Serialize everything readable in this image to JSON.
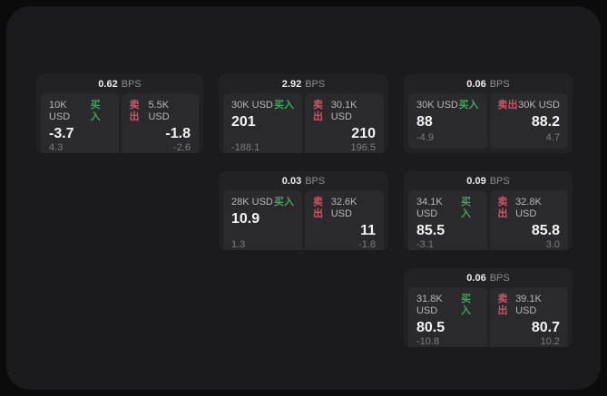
{
  "theme": {
    "page_bg": "#0b0b0c",
    "panel_bg": "#1b1b1d",
    "card_bg": "#222224",
    "tile_bg": "#2a2a2c",
    "buy_color": "#45a35f",
    "sell_color": "#ce5468",
    "value_color": "#f4f4f5",
    "label_color": "#b7b7ba",
    "muted_color": "#7d7d81"
  },
  "labels": {
    "buy": "买入",
    "sell": "卖出",
    "bps": "BPS"
  },
  "cards": [
    {
      "bps": "0.62",
      "buy": {
        "amount": "10K USD",
        "value": "-3.7",
        "delta": "4.3"
      },
      "sell": {
        "amount": "5.5K USD",
        "value": "-1.8",
        "delta": "-2.6"
      }
    },
    {
      "bps": "2.92",
      "buy": {
        "amount": "30K USD",
        "value": "201",
        "delta": "-188.1"
      },
      "sell": {
        "amount": "30.1K USD",
        "value": "210",
        "delta": "196.5"
      }
    },
    {
      "bps": "0.06",
      "buy": {
        "amount": "30K USD",
        "value": "88",
        "delta": "-4.9"
      },
      "sell": {
        "amount": "30K USD",
        "value": "88.2",
        "delta": "4.7"
      }
    },
    {
      "bps": "0.03",
      "buy": {
        "amount": "28K USD",
        "value": "10.9",
        "delta": "1.3"
      },
      "sell": {
        "amount": "32.6K USD",
        "value": "11",
        "delta": "-1.8"
      }
    },
    {
      "bps": "0.09",
      "buy": {
        "amount": "34.1K USD",
        "value": "85.5",
        "delta": "-3.1"
      },
      "sell": {
        "amount": "32.8K USD",
        "value": "85.8",
        "delta": "3.0"
      }
    },
    {
      "bps": "0.06",
      "buy": {
        "amount": "31.8K USD",
        "value": "80.5",
        "delta": "-10.8"
      },
      "sell": {
        "amount": "39.1K USD",
        "value": "80.7",
        "delta": "10.2"
      }
    }
  ]
}
